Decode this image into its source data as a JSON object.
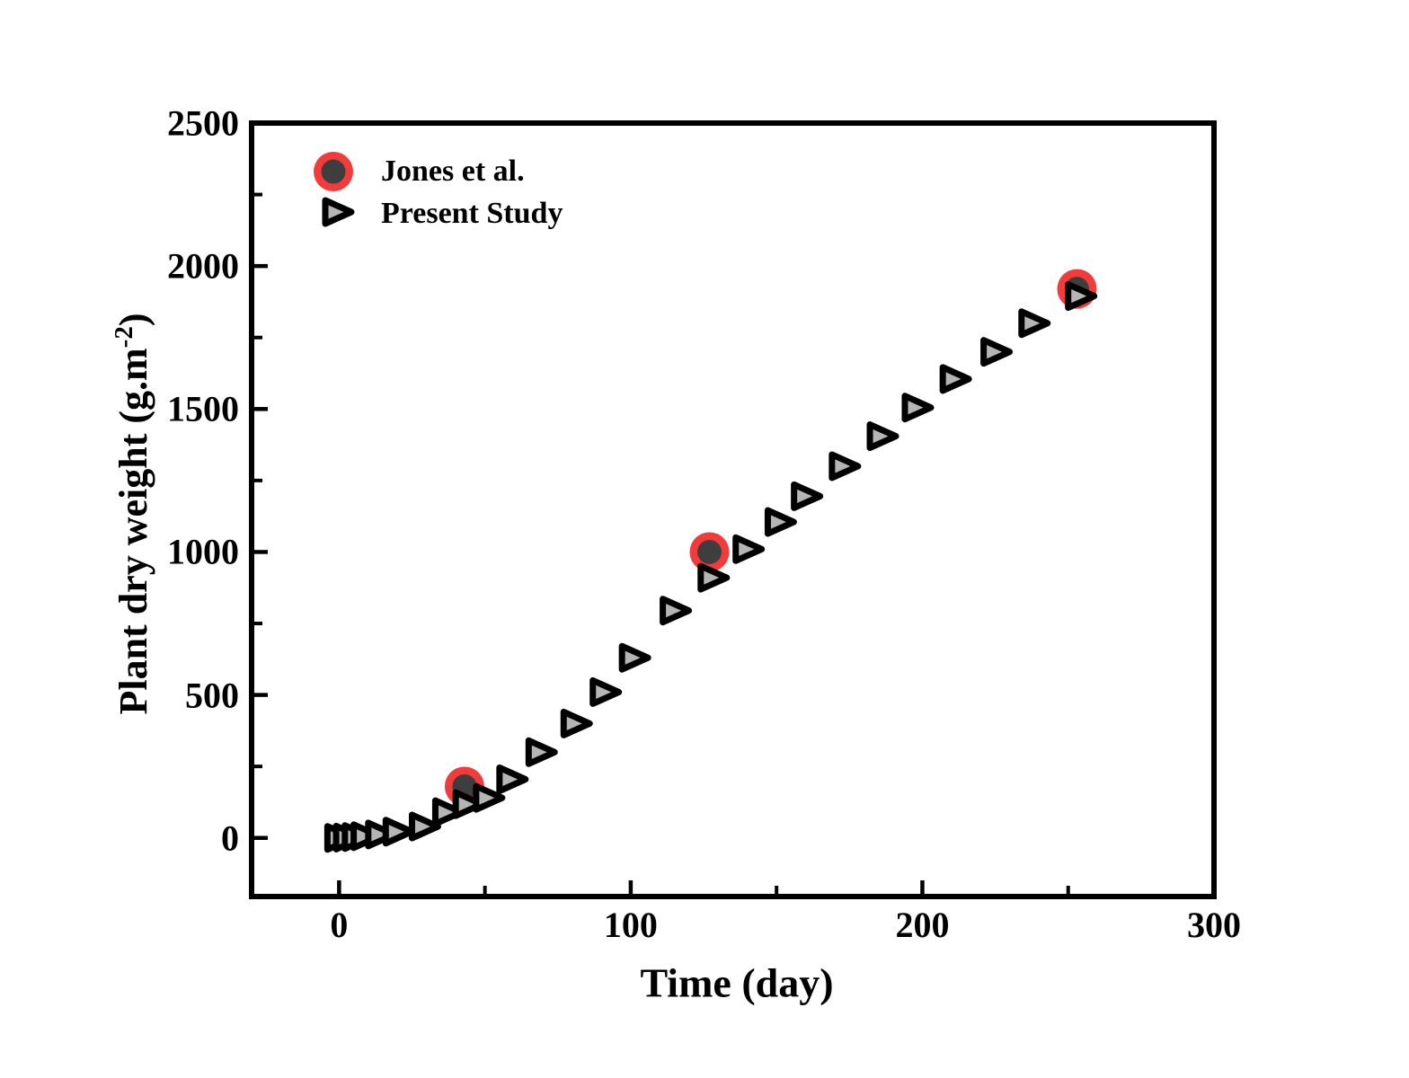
{
  "chart_data": {
    "type": "scatter",
    "title": "",
    "xlabel": "Time (day)",
    "ylabel": "Plant dry weight (g.m-2)",
    "ylabel_parts": {
      "main": "Plant dry weight (g.m",
      "sup": "-2",
      "close": ")"
    },
    "xlim": [
      -30,
      300
    ],
    "ylim": [
      -205,
      2500
    ],
    "grid": false,
    "legend_position": "upper-left-inside",
    "x_axis": {
      "major_tick_values": [
        0,
        100,
        200,
        300
      ],
      "major_tick_labels": [
        "0",
        "100",
        "200",
        "300"
      ],
      "minor_tick_values": [
        50,
        150,
        250
      ]
    },
    "y_axis": {
      "major_tick_values": [
        0,
        500,
        1000,
        1500,
        2000,
        2500
      ],
      "major_tick_labels": [
        "0",
        "500",
        "1000",
        "1500",
        "2000",
        "2500"
      ],
      "minor_tick_values": [
        250,
        750,
        1250,
        1750,
        2250
      ]
    },
    "series": [
      {
        "name": "Jones et al.",
        "marker": "circle",
        "outer_color": "#f23c3c",
        "inner_color": "#3e3e3e",
        "points": [
          [
            43,
            180
          ],
          [
            127,
            1000
          ],
          [
            253,
            1920
          ]
        ]
      },
      {
        "name": "Present Study",
        "marker": "right-triangle",
        "fill_color": "#b5b5b5",
        "stroke_color": "#000000",
        "points": [
          [
            0,
            0
          ],
          [
            3,
            1
          ],
          [
            6,
            3
          ],
          [
            9,
            6
          ],
          [
            14,
            12
          ],
          [
            20,
            22
          ],
          [
            29,
            40
          ],
          [
            37,
            90
          ],
          [
            44,
            118
          ],
          [
            51,
            140
          ],
          [
            59,
            205
          ],
          [
            69,
            300
          ],
          [
            81,
            400
          ],
          [
            91,
            510
          ],
          [
            101,
            630
          ],
          [
            115,
            795
          ],
          [
            128,
            910
          ],
          [
            140,
            1010
          ],
          [
            151,
            1105
          ],
          [
            160,
            1195
          ],
          [
            173,
            1300
          ],
          [
            186,
            1405
          ],
          [
            198,
            1505
          ],
          [
            211,
            1605
          ],
          [
            225,
            1700
          ],
          [
            238,
            1800
          ],
          [
            254,
            1895
          ]
        ]
      }
    ],
    "colors": {
      "background": "#ffffff",
      "axis": "#000000",
      "text": "#000000"
    }
  }
}
